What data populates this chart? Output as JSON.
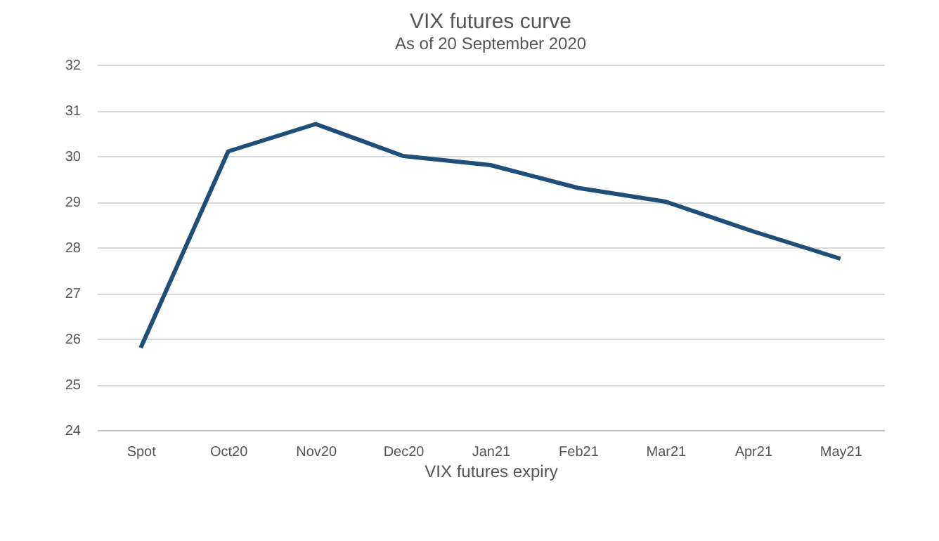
{
  "chart_data": {
    "type": "line",
    "title": "VIX futures curve",
    "subtitle": "As of 20 September 2020",
    "xlabel": "VIX futures expiry",
    "categories": [
      "Spot",
      "Oct20",
      "Nov20",
      "Dec20",
      "Jan21",
      "Feb21",
      "Mar21",
      "Apr21",
      "May21"
    ],
    "series": [
      {
        "color": "#1f4e79",
        "values": [
          25.8,
          30.1,
          30.7,
          30.0,
          29.8,
          29.3,
          29.0,
          28.35,
          27.75
        ]
      }
    ],
    "ylim": [
      24,
      32
    ],
    "yticks": [
      24,
      25,
      26,
      27,
      28,
      29,
      30,
      31,
      32
    ],
    "grid": "y",
    "legend": false,
    "marker": "none",
    "line_style": "solid"
  }
}
